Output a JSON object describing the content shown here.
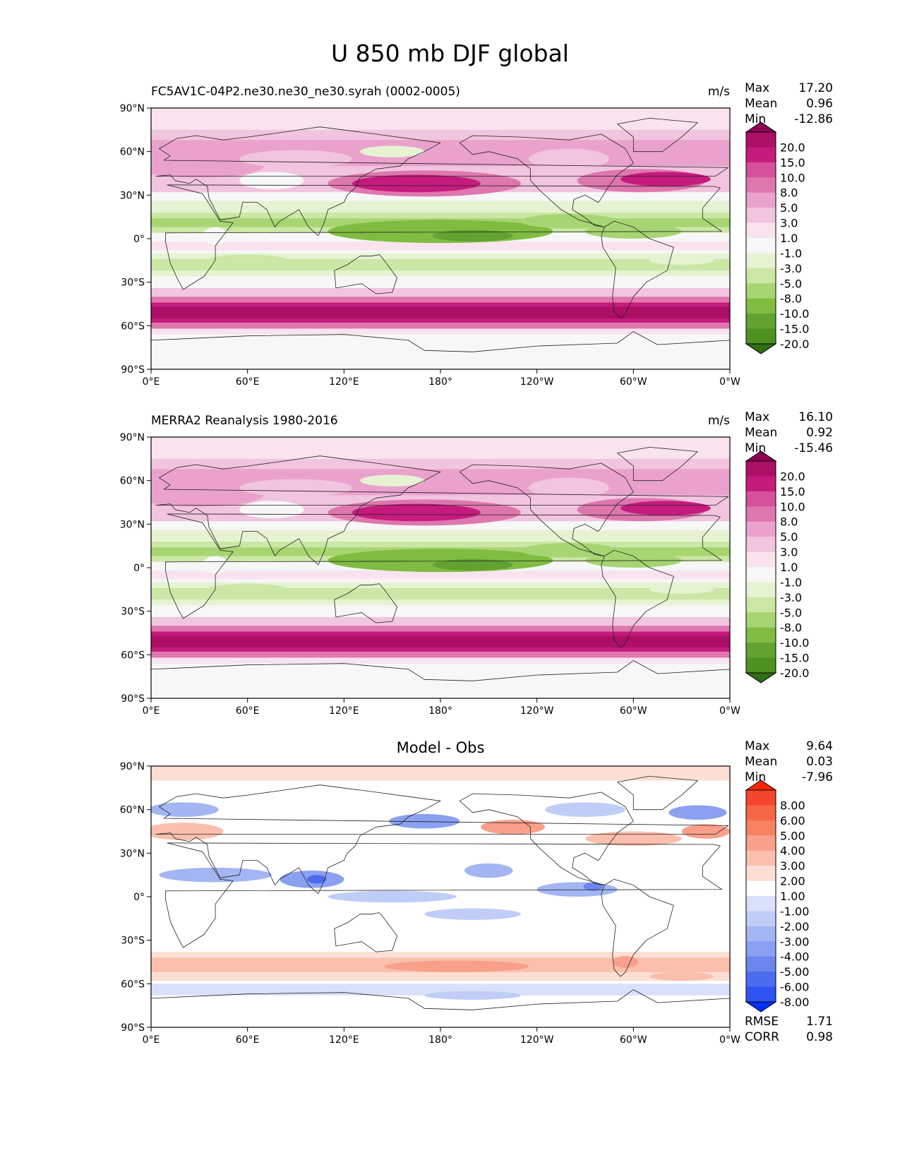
{
  "title": "U 850 mb DJF global",
  "lat_ticks": [
    "90°N",
    "60°N",
    "30°N",
    "0°",
    "30°S",
    "60°S",
    "90°S"
  ],
  "lon_ticks": [
    "0°E",
    "60°E",
    "120°E",
    "180°",
    "120°W",
    "60°W",
    "0°W"
  ],
  "panels": [
    {
      "title": "FC5AV1C-04P2.ne30.ne30_ne30.syrah (0002-0005)",
      "title_align": "left",
      "units": "m/s",
      "stats": {
        "max_label": "Max",
        "max": "17.20",
        "mean_label": "Mean",
        "mean": "0.96",
        "min_label": "Min",
        "min": "-12.86"
      },
      "colorbar": {
        "labels": [
          "20.0",
          "15.0",
          "10.0",
          "8.0",
          "5.0",
          "3.0",
          "1.0",
          "-1.0",
          "-3.0",
          "-5.0",
          "-8.0",
          "-10.0",
          "-15.0",
          "-20.0"
        ],
        "colors": [
          "#8e0152",
          "#ab0f66",
          "#c51b7d",
          "#d5519b",
          "#de77ae",
          "#eaa2cd",
          "#f1c4df",
          "#f8e3ee",
          "#f7f7f7",
          "#e6f3d3",
          "#cbe7a5",
          "#a7d572",
          "#7fbc41",
          "#61a231",
          "#4d9221",
          "#2f6e17"
        ]
      }
    },
    {
      "title": "MERRA2 Reanalysis 1980-2016",
      "title_align": "left",
      "units": "m/s",
      "stats": {
        "max_label": "Max",
        "max": "16.10",
        "mean_label": "Mean",
        "mean": "0.92",
        "min_label": "Min",
        "min": "-15.46"
      },
      "colorbar": {
        "labels": [
          "20.0",
          "15.0",
          "10.0",
          "8.0",
          "5.0",
          "3.0",
          "1.0",
          "-1.0",
          "-3.0",
          "-5.0",
          "-8.0",
          "-10.0",
          "-15.0",
          "-20.0"
        ],
        "colors": [
          "#8e0152",
          "#ab0f66",
          "#c51b7d",
          "#d5519b",
          "#de77ae",
          "#eaa2cd",
          "#f1c4df",
          "#f8e3ee",
          "#f7f7f7",
          "#e6f3d3",
          "#cbe7a5",
          "#a7d572",
          "#7fbc41",
          "#61a231",
          "#4d9221",
          "#2f6e17"
        ]
      }
    },
    {
      "title": "Model - Obs",
      "title_align": "center",
      "units": "",
      "stats": {
        "max_label": "Max",
        "max": "9.64",
        "mean_label": "Mean",
        "mean": "0.03",
        "min_label": "Min",
        "min": "-7.96"
      },
      "colorbar": {
        "labels": [
          "8.00",
          "6.00",
          "5.00",
          "4.00",
          "3.00",
          "2.00",
          "1.00",
          "-1.00",
          "-2.00",
          "-3.00",
          "-4.00",
          "-5.00",
          "-6.00",
          "-8.00"
        ],
        "colors": [
          "#ff2600",
          "#f4462c",
          "#f56546",
          "#f68261",
          "#f8a08a",
          "#fabfad",
          "#fcded3",
          "#ffffff",
          "#d9e1fa",
          "#c0cdf6",
          "#a3b5f2",
          "#8aa0f1",
          "#6c86f0",
          "#4c6cf0",
          "#2f54f3",
          "#0030ff"
        ]
      },
      "bottom_stats": {
        "rmse_label": "RMSE",
        "rmse": "1.71",
        "corr_label": "CORR",
        "corr": "0.98"
      }
    }
  ],
  "chart_data": [
    {
      "type": "heatmap",
      "title": "FC5AV1C-04P2.ne30.ne30_ne30.syrah (0002-0005)",
      "variable": "U 850 mb DJF global",
      "units": "m/s",
      "x_range": [
        0,
        360
      ],
      "y_range": [
        -90,
        90
      ],
      "levels": [
        -20.0,
        -15.0,
        -10.0,
        -8.0,
        -5.0,
        -3.0,
        -1.0,
        1.0,
        3.0,
        5.0,
        8.0,
        10.0,
        15.0,
        20.0
      ],
      "max": 17.2,
      "mean": 0.96,
      "min": -12.86
    },
    {
      "type": "heatmap",
      "title": "MERRA2 Reanalysis 1980-2016",
      "variable": "U 850 mb DJF global",
      "units": "m/s",
      "x_range": [
        0,
        360
      ],
      "y_range": [
        -90,
        90
      ],
      "levels": [
        -20.0,
        -15.0,
        -10.0,
        -8.0,
        -5.0,
        -3.0,
        -1.0,
        1.0,
        3.0,
        5.0,
        8.0,
        10.0,
        15.0,
        20.0
      ],
      "max": 16.1,
      "mean": 0.92,
      "min": -15.46
    },
    {
      "type": "heatmap",
      "title": "Model - Obs",
      "variable": "U 850 mb DJF global",
      "x_range": [
        0,
        360
      ],
      "y_range": [
        -90,
        90
      ],
      "levels": [
        -8.0,
        -6.0,
        -5.0,
        -4.0,
        -3.0,
        -2.0,
        -1.0,
        1.0,
        2.0,
        3.0,
        4.0,
        5.0,
        6.0,
        8.0
      ],
      "max": 9.64,
      "mean": 0.03,
      "min": -7.96,
      "rmse": 1.71,
      "corr": 0.98
    }
  ]
}
